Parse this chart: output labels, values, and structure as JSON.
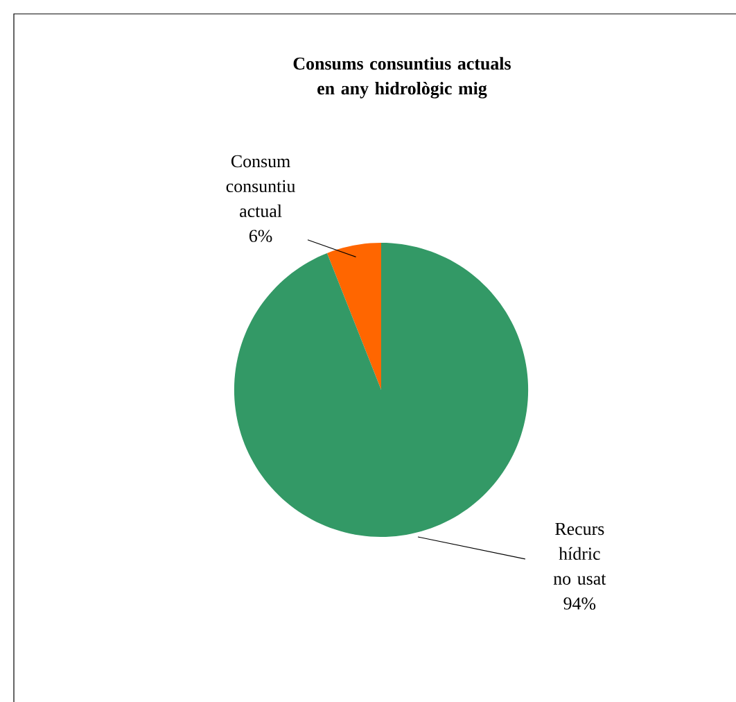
{
  "chart_data": {
    "type": "pie",
    "title": "Consums consuntius actuals en any hidrològic mig",
    "categories": [
      "Consum consuntiu actual",
      "Recurs hídric no usat"
    ],
    "values": [
      6,
      94
    ],
    "colors": [
      "#ff6600",
      "#339966"
    ],
    "value_labels": [
      "6%",
      "94%"
    ]
  }
}
